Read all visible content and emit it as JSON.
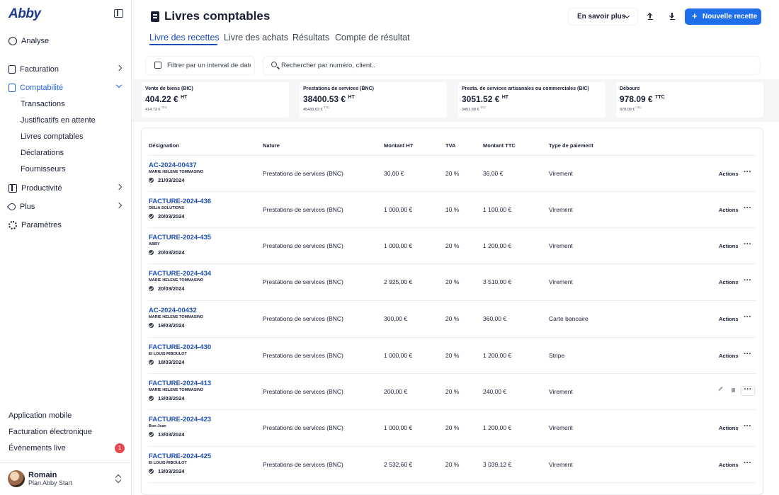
{
  "brand": {
    "logo": "Abby"
  },
  "sidebar": {
    "items": [
      {
        "label": "Analyse",
        "icon": "chart-pie-icon"
      },
      {
        "label": "Facturation",
        "icon": "document-icon"
      },
      {
        "label": "Comptabilité",
        "icon": "ledger-icon",
        "active": true
      },
      {
        "label": "Productivité",
        "icon": "grid-icon"
      },
      {
        "label": "Plus",
        "icon": "rocket-icon"
      },
      {
        "label": "Paramètres",
        "icon": "gear-icon"
      }
    ],
    "sub_items": [
      "Transactions",
      "Justificatifs en attente",
      "Livres comptables",
      "Déclarations",
      "Fournisseurs"
    ],
    "footer_links": [
      "Application mobile",
      "Facturation électronique",
      "Évènements live"
    ],
    "live_badge": "1",
    "user": {
      "name": "Romain",
      "plan": "Plan Abby Start"
    }
  },
  "header": {
    "title": "Livres comptables",
    "learn_more": "En savoir plus",
    "new_button": "Nouvelle recette",
    "accent_color": "#1f6feb"
  },
  "tabs": [
    "Livre des recettes",
    "Livre des achats",
    "Résultats",
    "Compte de résultat"
  ],
  "filters": {
    "date_placeholder": "Filtrer par un interval de date",
    "search_placeholder": "Rechercher par numéro, client.."
  },
  "stats": [
    {
      "label": "Vente de biens (BIC)",
      "value": "404.22 €",
      "value_unit": "HT",
      "sub": "414.73 €",
      "sub_unit": "TTC"
    },
    {
      "label": "Prestations de services (BNC)",
      "value": "38400.53 €",
      "value_unit": "HT",
      "sub": "45430.63 €",
      "sub_unit": "TTC"
    },
    {
      "label": "Presta. de services artisanales ou commerciales (BIC)",
      "value": "3051.52 €",
      "value_unit": "HT",
      "sub": "3451.68 €",
      "sub_unit": "TTC"
    },
    {
      "label": "Débours",
      "value": "978.09 €",
      "value_unit": "TTC",
      "sub": "978.09 €",
      "sub_unit": "TTC"
    }
  ],
  "table": {
    "columns": [
      "Désignation",
      "Nature",
      "Montant HT",
      "TVA",
      "Montant TTC",
      "Type de paiement"
    ],
    "actions_label": "Actions",
    "rows": [
      {
        "ref": "AC-2024-00437",
        "client": "MARIE HELENE TOMMASINO",
        "date": "21/03/2024",
        "nature": "Prestations de services (BNC)",
        "ht": "30,00 €",
        "tva": "20 %",
        "ttc": "36,00 €",
        "payment": "Virement"
      },
      {
        "ref": "FACTURE-2024-436",
        "client": "DELIA SOLUTIONS",
        "date": "20/03/2024",
        "nature": "Prestations de services (BNC)",
        "ht": "1 000,00 €",
        "tva": "10 %",
        "ttc": "1 100,00 €",
        "payment": "Virement"
      },
      {
        "ref": "FACTURE-2024-435",
        "client": "ABBY",
        "date": "20/03/2024",
        "nature": "Prestations de services (BNC)",
        "ht": "1 000,00 €",
        "tva": "20 %",
        "ttc": "1 200,00 €",
        "payment": "Virement"
      },
      {
        "ref": "FACTURE-2024-434",
        "client": "MARIE HELENE TOMMASINO",
        "date": "20/03/2024",
        "nature": "Prestations de services (BNC)",
        "ht": "2 925,00 €",
        "tva": "20 %",
        "ttc": "3 510,00 €",
        "payment": "Virement"
      },
      {
        "ref": "AC-2024-00432",
        "client": "MARIE HELENE TOMMASINO",
        "date": "19/03/2024",
        "nature": "Prestations de services (BNC)",
        "ht": "300,00 €",
        "tva": "20 %",
        "ttc": "360,00 €",
        "payment": "Carte bancaire"
      },
      {
        "ref": "FACTURE-2024-430",
        "client": "EI LOUIS RIBOULOT",
        "date": "18/03/2024",
        "nature": "Prestations de services (BNC)",
        "ht": "1 000,00 €",
        "tva": "20 %",
        "ttc": "1 200,00 €",
        "payment": "Stripe"
      },
      {
        "ref": "FACTURE-2024-413",
        "client": "MARIE HELENE TOMMASINO",
        "date": "13/03/2024",
        "nature": "Prestations de services (BNC)",
        "ht": "200,00 €",
        "tva": "20 %",
        "ttc": "240,00 €",
        "payment": "Virement",
        "hovered": true
      },
      {
        "ref": "FACTURE-2024-423",
        "client": "Bon Jean",
        "date": "13/03/2024",
        "nature": "Prestations de services (BNC)",
        "ht": "1 000,00 €",
        "tva": "20 %",
        "ttc": "1 200,00 €",
        "payment": "Virement"
      },
      {
        "ref": "FACTURE-2024-425",
        "client": "EI LOUIS RIBOULOT",
        "date": "13/03/2024",
        "nature": "Prestations de services (BNC)",
        "ht": "2 532,60 €",
        "tva": "20 %",
        "ttc": "3 039,12 €",
        "payment": "Virement"
      }
    ]
  }
}
